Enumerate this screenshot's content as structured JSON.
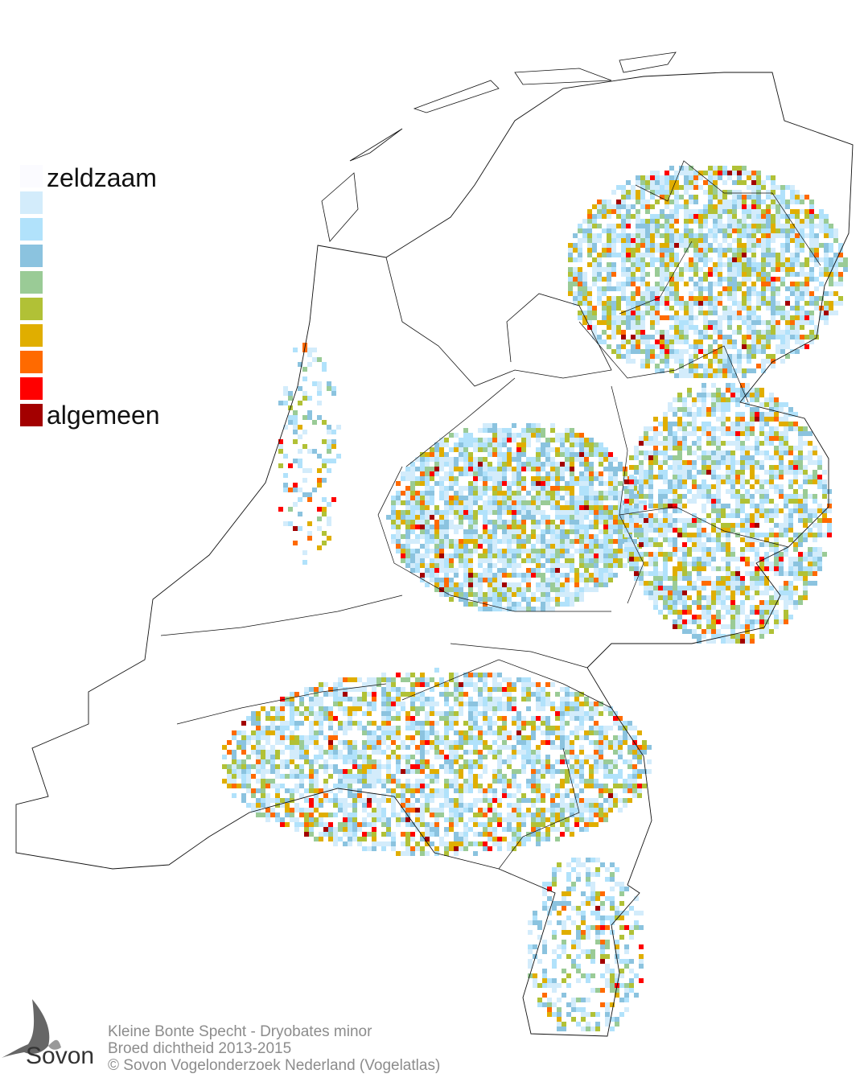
{
  "legend": {
    "top_label": "zeldzaam",
    "bottom_label": "algemeen",
    "colors": [
      "#fbfbff",
      "#d3ecfb",
      "#b1e2fb",
      "#8bc3df",
      "#9acb96",
      "#b1c136",
      "#e0ae00",
      "#ff6a00",
      "#ff0000",
      "#a30000"
    ]
  },
  "caption": {
    "line1": "Kleine Bonte Specht - Dryobates minor",
    "line2": "Broed dichtheid 2013-2015",
    "line3": "© Sovon Vogelonderzoek Nederland (Vogelatlas)"
  },
  "logo": {
    "text": "Sovon",
    "icon": "swallow-icon"
  }
}
